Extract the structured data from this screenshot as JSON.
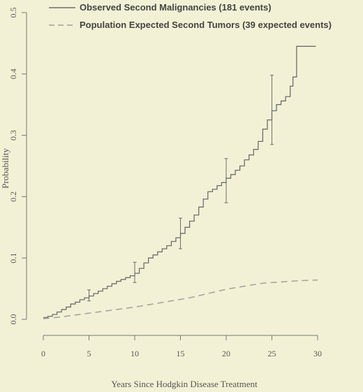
{
  "chart_data": {
    "type": "line",
    "title": "",
    "xlabel": "Years Since Hodgkin Disease Treatment",
    "ylabel": "Probability",
    "xlim": [
      0,
      30
    ],
    "ylim": [
      0,
      0.5
    ],
    "x_ticks": [
      "0",
      "5",
      "10",
      "15",
      "20",
      "25",
      "30"
    ],
    "y_ticks": [
      "0.0",
      "0.1",
      "0.2",
      "0.3",
      "0.4",
      "0.5"
    ],
    "legend_position": "top",
    "colors": {
      "observed": "#6e6e6e",
      "expected": "#a0a0a0",
      "axis": "#777777",
      "background": "#f3f1d5"
    },
    "series": [
      {
        "name": "Observed Second Malignancies (181 events)",
        "style": "solid-step",
        "x": [
          0,
          0.5,
          1,
          1.5,
          2,
          2.5,
          3,
          3.5,
          4,
          4.5,
          5,
          5.5,
          6,
          6.5,
          7,
          7.5,
          8,
          8.5,
          9,
          9.5,
          10,
          10.5,
          11,
          11.5,
          12,
          12.5,
          13,
          13.5,
          14,
          14.5,
          15,
          15.5,
          16,
          16.5,
          17,
          17.5,
          18,
          18.5,
          19,
          19.5,
          20,
          20.5,
          21,
          21.5,
          22,
          22.5,
          23,
          23.5,
          24,
          24.5,
          25,
          25.5,
          26,
          26.5,
          27,
          27.3,
          27.7,
          29.8
        ],
        "y": [
          0.003,
          0.005,
          0.008,
          0.012,
          0.016,
          0.02,
          0.025,
          0.028,
          0.032,
          0.035,
          0.038,
          0.042,
          0.046,
          0.05,
          0.054,
          0.058,
          0.062,
          0.065,
          0.068,
          0.071,
          0.075,
          0.083,
          0.092,
          0.1,
          0.105,
          0.11,
          0.115,
          0.12,
          0.127,
          0.133,
          0.14,
          0.15,
          0.16,
          0.17,
          0.183,
          0.196,
          0.208,
          0.212,
          0.218,
          0.223,
          0.23,
          0.236,
          0.243,
          0.25,
          0.26,
          0.268,
          0.277,
          0.29,
          0.31,
          0.325,
          0.34,
          0.35,
          0.356,
          0.363,
          0.38,
          0.395,
          0.445,
          0.445
        ]
      },
      {
        "name": "Population Expected Second Tumors (39 expected events)",
        "style": "dashed",
        "x": [
          0,
          2,
          4,
          6,
          8,
          10,
          12,
          14,
          16,
          18,
          20,
          22,
          24,
          26,
          28,
          30
        ],
        "y": [
          0.001,
          0.004,
          0.008,
          0.012,
          0.016,
          0.02,
          0.025,
          0.03,
          0.035,
          0.042,
          0.049,
          0.054,
          0.059,
          0.061,
          0.063,
          0.064
        ]
      }
    ],
    "error_bars": [
      {
        "x": 5,
        "y": 0.038,
        "low": 0.03,
        "high": 0.048
      },
      {
        "x": 10,
        "y": 0.075,
        "low": 0.06,
        "high": 0.093
      },
      {
        "x": 15,
        "y": 0.14,
        "low": 0.115,
        "high": 0.165
      },
      {
        "x": 20,
        "y": 0.23,
        "low": 0.19,
        "high": 0.262
      },
      {
        "x": 25,
        "y": 0.34,
        "low": 0.285,
        "high": 0.398
      }
    ]
  }
}
